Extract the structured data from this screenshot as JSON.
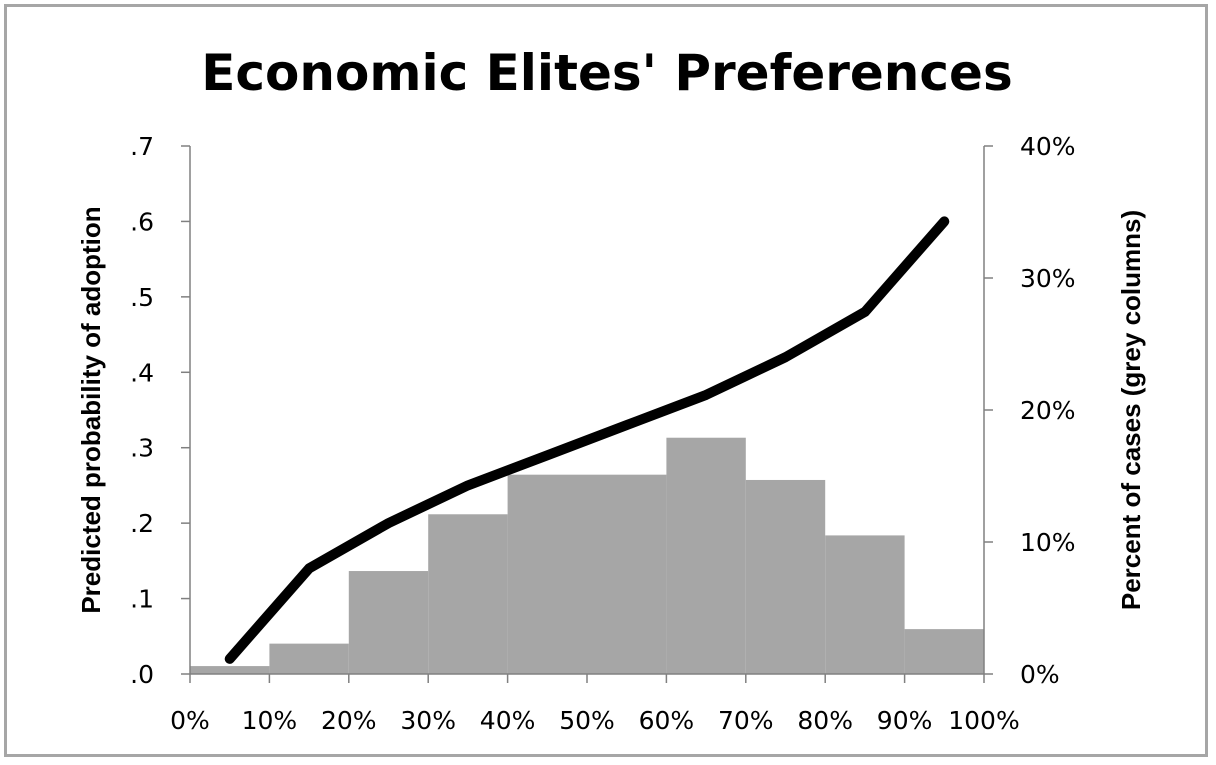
{
  "chart_data": {
    "type": "bar",
    "title": "Economic Elites' Preferences",
    "ylabel": "Predicted probability of adoption",
    "y2label": "Percent of cases (grey columns)",
    "x_tick_labels": [
      "0%",
      "10%",
      "20%",
      "30%",
      "40%",
      "50%",
      "60%",
      "70%",
      "80%",
      "90%",
      "100%"
    ],
    "xlim": [
      0,
      100
    ],
    "y_tick_labels": [
      ".0",
      ".1",
      ".2",
      ".3",
      ".4",
      ".5",
      ".6",
      ".7"
    ],
    "ylim": [
      0,
      0.7
    ],
    "y2_tick_labels": [
      "0%",
      "10%",
      "20%",
      "30%",
      "40%"
    ],
    "y2lim": [
      0,
      40
    ],
    "bars": {
      "name": "Percent of cases",
      "color": "#a6a6a6",
      "bin_edges": [
        0,
        10,
        20,
        30,
        40,
        50,
        60,
        70,
        80,
        90,
        100
      ],
      "values": [
        0.6,
        2.3,
        7.8,
        12.1,
        15.1,
        15.1,
        17.9,
        14.7,
        10.5,
        3.4
      ]
    },
    "line": {
      "name": "Predicted probability",
      "color": "#000000",
      "x": [
        5,
        15,
        25,
        35,
        45,
        55,
        65,
        75,
        85,
        95
      ],
      "y": [
        0.02,
        0.14,
        0.2,
        0.25,
        0.29,
        0.33,
        0.37,
        0.42,
        0.48,
        0.6
      ]
    },
    "grid": false
  }
}
